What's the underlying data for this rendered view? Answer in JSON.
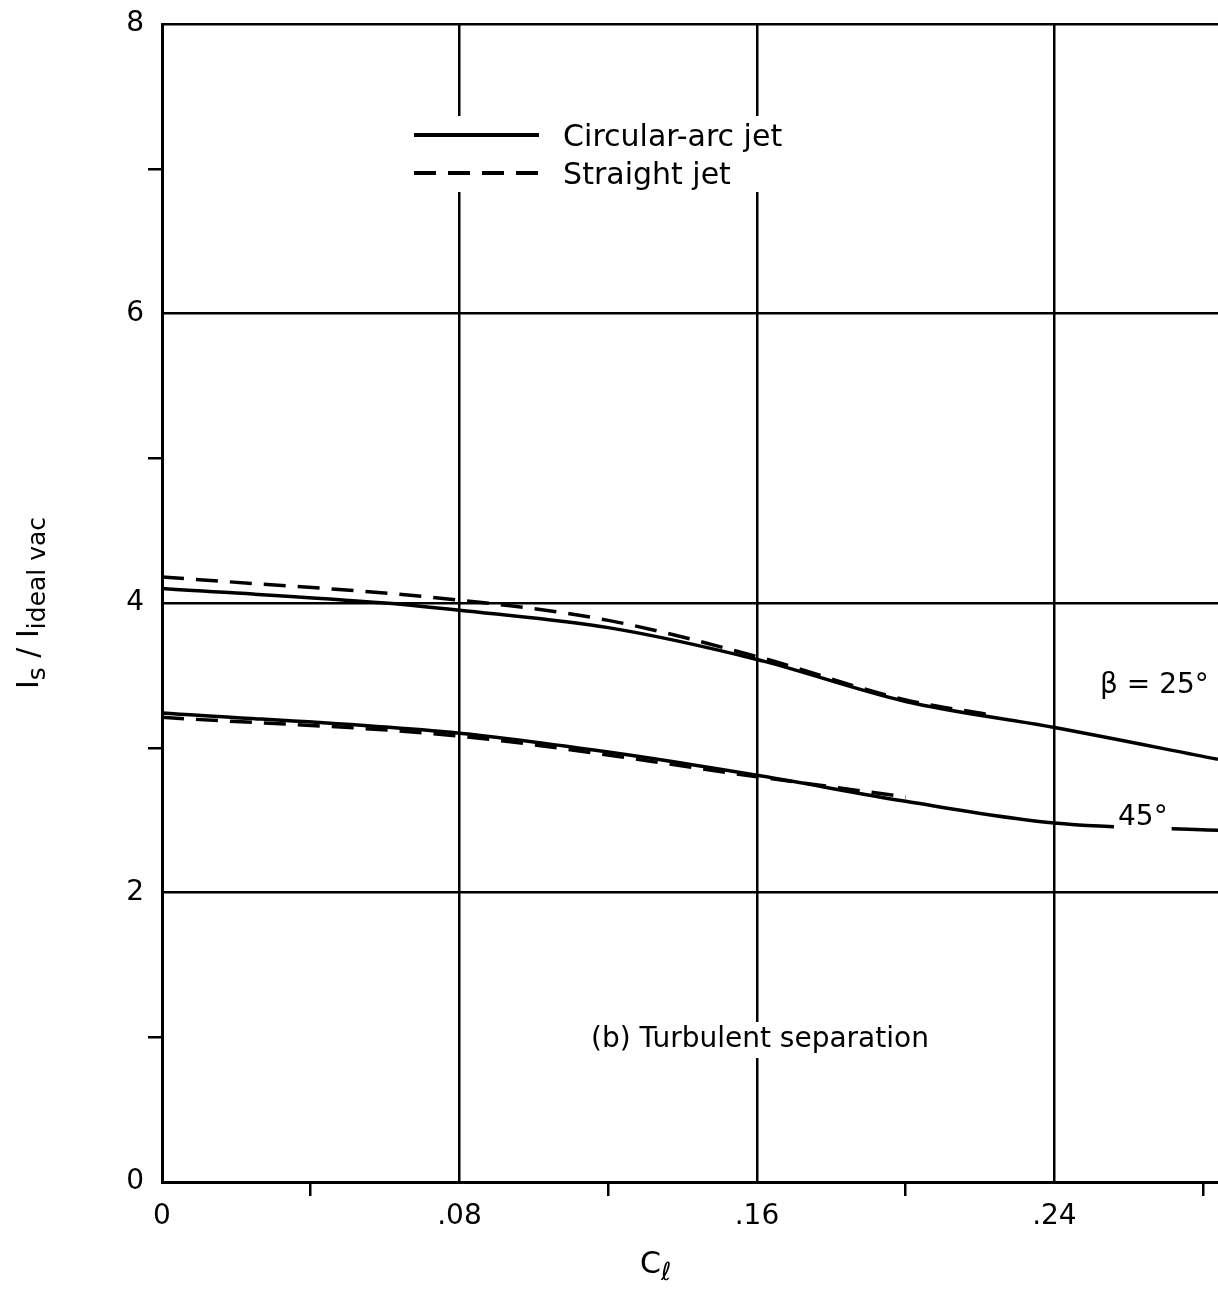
{
  "chart_data": {
    "type": "line",
    "xlabel": "C$_{ℓ}$",
    "ylabel": "I$_{s}$ / I$_{ideal vac}$",
    "xlim": [
      0,
      0.284
    ],
    "ylim": [
      0,
      8
    ],
    "xticks": [
      {
        "value": 0,
        "label": "0"
      },
      {
        "value": 0.04,
        "label": null
      },
      {
        "value": 0.08,
        "label": ".08"
      },
      {
        "value": 0.12,
        "label": null
      },
      {
        "value": 0.16,
        "label": ".16"
      },
      {
        "value": 0.2,
        "label": null
      },
      {
        "value": 0.24,
        "label": ".24"
      },
      {
        "value": 0.28,
        "label": null
      }
    ],
    "yticks": [
      0,
      {
        "value": 1,
        "label": null
      },
      2,
      {
        "value": 3,
        "label": null
      },
      4,
      {
        "value": 5,
        "label": null
      },
      6,
      {
        "value": 7,
        "label": null
      },
      8
    ],
    "grid": true,
    "legend": "top",
    "marker": "none",
    "series": [
      {
        "name": "Circular-arc jet",
        "color": "#000000",
        "line_style": "solid",
        "x": [
          0,
          0.06,
          0.08,
          0.12,
          0.16,
          0.2,
          0.24,
          0.284
        ],
        "values": [
          4.1,
          4.0,
          3.95,
          3.83,
          3.61,
          3.32,
          3.14,
          2.92
        ]
      },
      {
        "name": "Straight jet",
        "color": "#000000",
        "line_style": "dashed",
        "x": [
          0,
          0.08,
          0.12,
          0.16,
          0.2,
          0.222
        ],
        "values": [
          4.18,
          4.02,
          3.88,
          3.63,
          3.33,
          3.23
        ]
      },
      {
        "color": "#000000",
        "line_style": "solid",
        "x": [
          0,
          0.08,
          0.12,
          0.16,
          0.2,
          0.24,
          0.284
        ],
        "values": [
          3.24,
          3.1,
          2.97,
          2.81,
          2.63,
          2.48,
          2.43
        ]
      },
      {
        "color": "#000000",
        "line_style": "dashed",
        "x": [
          0,
          0.08,
          0.16,
          0.2
        ],
        "values": [
          3.21,
          3.08,
          2.8,
          2.66
        ]
      }
    ],
    "annotations": [
      "β = 25°",
      "45°",
      "(b) Turbulent separation"
    ]
  }
}
